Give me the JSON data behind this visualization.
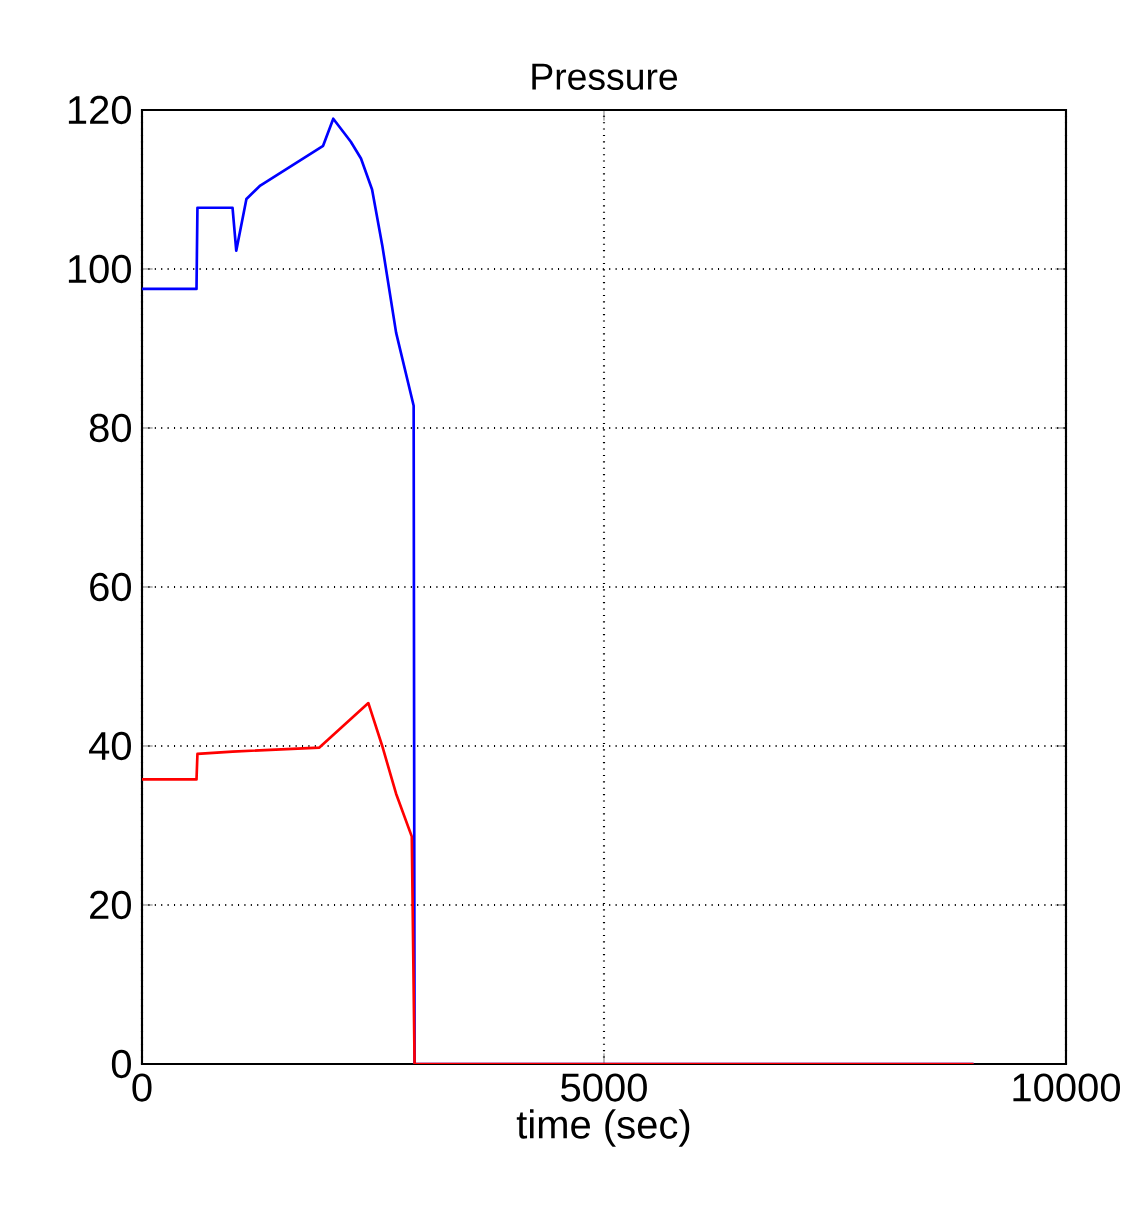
{
  "chart_data": {
    "type": "line",
    "title": "Pressure",
    "xlabel": "time (sec)",
    "series": [
      {
        "color": "#0000ff",
        "x": [
          0,
          590,
          600,
          980,
          1020,
          1130,
          1280,
          1960,
          2070,
          2260,
          2370,
          2490,
          2600,
          2750,
          2940,
          2950,
          9000
        ],
        "values": [
          97.5,
          97.5,
          107.7,
          107.7,
          102.3,
          108.8,
          110.5,
          115.5,
          118.9,
          116,
          113.9,
          110,
          103,
          92,
          82.8,
          0,
          0
        ]
      },
      {
        "color": "#ff0000",
        "x": [
          0,
          590,
          600,
          980,
          1920,
          2450,
          2600,
          2750,
          2920,
          2950,
          9000
        ],
        "values": [
          35.8,
          35.8,
          39,
          39.3,
          39.8,
          45.4,
          40,
          34,
          28.6,
          0,
          0
        ]
      }
    ],
    "xlim": [
      0,
      10000
    ],
    "ylim": [
      0,
      120
    ],
    "xticks": [
      0,
      5000,
      10000
    ],
    "yticks": [
      0,
      20,
      40,
      60,
      80,
      100,
      120
    ],
    "grid": true
  }
}
